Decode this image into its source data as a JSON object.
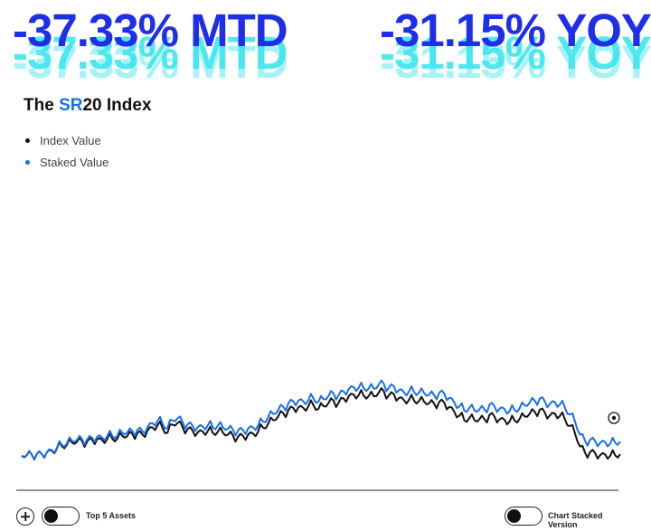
{
  "stats": {
    "mtd": "-37.33% MTD",
    "yoy": "-31.15% YOY"
  },
  "title": {
    "prefix": "The ",
    "accent": "SR",
    "suffix": "20 Index"
  },
  "legend": [
    {
      "label": "Index Value",
      "color": "#111111"
    },
    {
      "label": "Staked Value",
      "color": "#1a6fe8"
    }
  ],
  "controls": {
    "top5_label": "Top 5 Assets",
    "stacked_label": "Chart Stacked Version"
  },
  "colors": {
    "headline": "#1f2ee8",
    "headline_echo": "#3ce6ee",
    "accent": "#1a6fe8",
    "index_series": "#111111",
    "staked_series": "#1a6fe8"
  },
  "chart_data": {
    "type": "line",
    "title": "The SR20 Index",
    "grid": false,
    "legend_position": "top-left",
    "x_axis": "none",
    "y_axis": "none",
    "points_approx": 120,
    "series": [
      {
        "name": "Index Value",
        "values": [
          0.9,
          3.5,
          6.0,
          8.0,
          7.5,
          15,
          21,
          30,
          39,
          46,
          55,
          58,
          61,
          58,
          66,
          68,
          65,
          70,
          71,
          70,
          83,
          81,
          90,
          94,
          88,
          104,
          117,
          125,
          114,
          95,
          128,
          136,
          118,
          111,
          103,
          97,
          100,
          102,
          94,
          100,
          96,
          87,
          84,
          78,
          82,
          87,
          92,
          100,
          116,
          132,
          147,
          163,
          176,
          187,
          197,
          200,
          197,
          204,
          208,
          193,
          204,
          217,
          227,
          219,
          236,
          245,
          252,
          250,
          247,
          246,
          245,
          261,
          266,
          249,
          253,
          238,
          229,
          231,
          227,
          226,
          223,
          216,
          214,
          222,
          219,
          201,
          182,
          165,
          146,
          156,
          147,
          150,
          151,
          169,
          162,
          150,
          148,
          141,
          145,
          152,
          162,
          174,
          181,
          190,
          178,
          166,
          174,
          164,
          150,
          123,
          93,
          39,
          13,
          16,
          12,
          3,
          6,
          0.5,
          2,
          7
        ]
      },
      {
        "name": "Staked Value",
        "values": [
          0,
          2.6,
          6.1,
          8.2,
          7.8,
          15.9,
          23.5,
          33.1,
          44.4,
          52.4,
          62.6,
          65.8,
          68.9,
          67.3,
          74.5,
          78.6,
          76,
          80.7,
          82.4,
          82.5,
          95.6,
          95.4,
          102.7,
          107.6,
          102.6,
          118.4,
          134.5,
          143.2,
          132.3,
          114.6,
          145.5,
          155,
          139.3,
          130.2,
          123.7,
          117.9,
          120.8,
          125.3,
          117.5,
          123.7,
          117.9,
          111.1,
          107.8,
          103.9,
          105.9,
          111.5,
          117.3,
          125,
          140.1,
          159.4,
          172.4,
          188.7,
          202.2,
          214.9,
          224.6,
          227.3,
          224.6,
          229.6,
          236,
          222.7,
          233.1,
          246.6,
          256.8,
          249.9,
          265.5,
          274.9,
          282.7,
          279.8,
          278.1,
          277.4,
          276.5,
          294.1,
          296.5,
          280.6,
          285.8,
          270.6,
          261.4,
          265.1,
          262.7,
          260.2,
          258.3,
          251.3,
          249.8,
          259.2,
          256.4,
          238.8,
          219.9,
          202.8,
          186.1,
          197.4,
          187.3,
          190.9,
          190.6,
          210.6,
          203.8,
          193.7,
          191.9,
          184.2,
          188.4,
          195.8,
          207.1,
          219.3,
          227.3,
          236,
          224.1,
          213.2,
          221.6,
          211,
          197.7,
          170.5,
          141.6,
          87.3,
          62.1,
          66.3,
          61.8,
          53.9,
          57.1,
          50.7,
          53.8,
          59
        ]
      }
    ]
  }
}
